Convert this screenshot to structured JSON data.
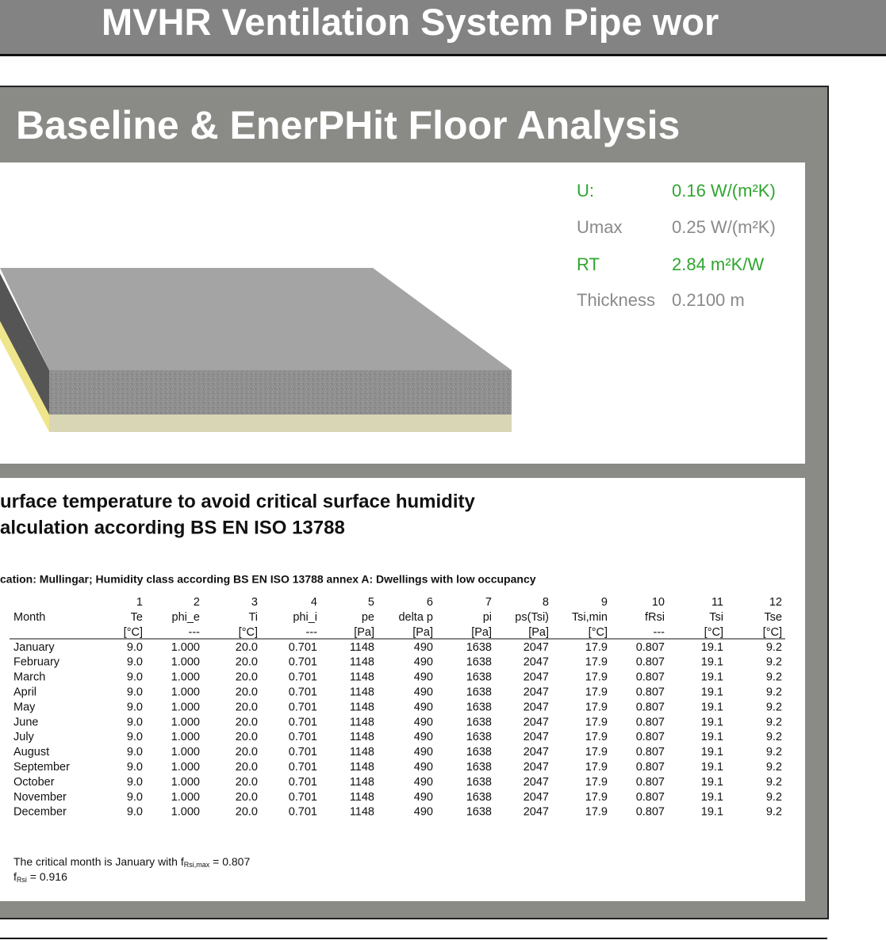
{
  "header": {
    "title": "MVHR Ventilation System Pipe wor"
  },
  "panel": {
    "title": "Baseline & EnerPHit Floor Analysis",
    "properties": [
      {
        "label": "U:",
        "value": "0.16 W/(m²K)"
      },
      {
        "label": "Umax",
        "value": "0.25 W/(m²K)"
      },
      {
        "label": "RT",
        "value": "2.84 m²K/W"
      },
      {
        "label": "Thickness",
        "value": "0.2100 m"
      }
    ]
  },
  "report": {
    "heading": [
      "urface temperature to avoid critical surface humidity",
      "alculation according BS EN ISO 13788"
    ],
    "location": "cation: Mullingar; Humidity class according BS EN ISO 13788 annex A: Dwellings with low occupancy",
    "table": {
      "column_numbers": [
        "1",
        "2",
        "3",
        "4",
        "5",
        "6",
        "7",
        "8",
        "9",
        "10",
        "11",
        "12"
      ],
      "row_header": "Month",
      "headers": [
        "Te",
        "phi_e",
        "Ti",
        "phi_i",
        "pe",
        "delta p",
        "pi",
        "ps(Tsi)",
        "Tsi,min",
        "fRsi",
        "Tsi",
        "Tse"
      ],
      "units": [
        "[°C]",
        "---",
        "[°C]",
        "---",
        "[Pa]",
        "[Pa]",
        "[Pa]",
        "[Pa]",
        "[°C]",
        "---",
        "[°C]",
        "[°C]"
      ],
      "rows": [
        [
          "January",
          "9.0",
          "1.000",
          "20.0",
          "0.701",
          "1148",
          "490",
          "1638",
          "2047",
          "17.9",
          "0.807",
          "19.1",
          "9.2"
        ],
        [
          "February",
          "9.0",
          "1.000",
          "20.0",
          "0.701",
          "1148",
          "490",
          "1638",
          "2047",
          "17.9",
          "0.807",
          "19.1",
          "9.2"
        ],
        [
          "March",
          "9.0",
          "1.000",
          "20.0",
          "0.701",
          "1148",
          "490",
          "1638",
          "2047",
          "17.9",
          "0.807",
          "19.1",
          "9.2"
        ],
        [
          "April",
          "9.0",
          "1.000",
          "20.0",
          "0.701",
          "1148",
          "490",
          "1638",
          "2047",
          "17.9",
          "0.807",
          "19.1",
          "9.2"
        ],
        [
          "May",
          "9.0",
          "1.000",
          "20.0",
          "0.701",
          "1148",
          "490",
          "1638",
          "2047",
          "17.9",
          "0.807",
          "19.1",
          "9.2"
        ],
        [
          "June",
          "9.0",
          "1.000",
          "20.0",
          "0.701",
          "1148",
          "490",
          "1638",
          "2047",
          "17.9",
          "0.807",
          "19.1",
          "9.2"
        ],
        [
          "July",
          "9.0",
          "1.000",
          "20.0",
          "0.701",
          "1148",
          "490",
          "1638",
          "2047",
          "17.9",
          "0.807",
          "19.1",
          "9.2"
        ],
        [
          "August",
          "9.0",
          "1.000",
          "20.0",
          "0.701",
          "1148",
          "490",
          "1638",
          "2047",
          "17.9",
          "0.807",
          "19.1",
          "9.2"
        ],
        [
          "September",
          "9.0",
          "1.000",
          "20.0",
          "0.701",
          "1148",
          "490",
          "1638",
          "2047",
          "17.9",
          "0.807",
          "19.1",
          "9.2"
        ],
        [
          "October",
          "9.0",
          "1.000",
          "20.0",
          "0.701",
          "1148",
          "490",
          "1638",
          "2047",
          "17.9",
          "0.807",
          "19.1",
          "9.2"
        ],
        [
          "November",
          "9.0",
          "1.000",
          "20.0",
          "0.701",
          "1148",
          "490",
          "1638",
          "2047",
          "17.9",
          "0.807",
          "19.1",
          "9.2"
        ],
        [
          "December",
          "9.0",
          "1.000",
          "20.0",
          "0.701",
          "1148",
          "490",
          "1638",
          "2047",
          "17.9",
          "0.807",
          "19.1",
          "9.2"
        ]
      ]
    },
    "notes": [
      {
        "parts": [
          "The critical month is January with f",
          "Rsi,max",
          " = 0.807"
        ]
      },
      {
        "parts": [
          "f",
          "Rsi",
          " = 0.916"
        ]
      }
    ]
  }
}
